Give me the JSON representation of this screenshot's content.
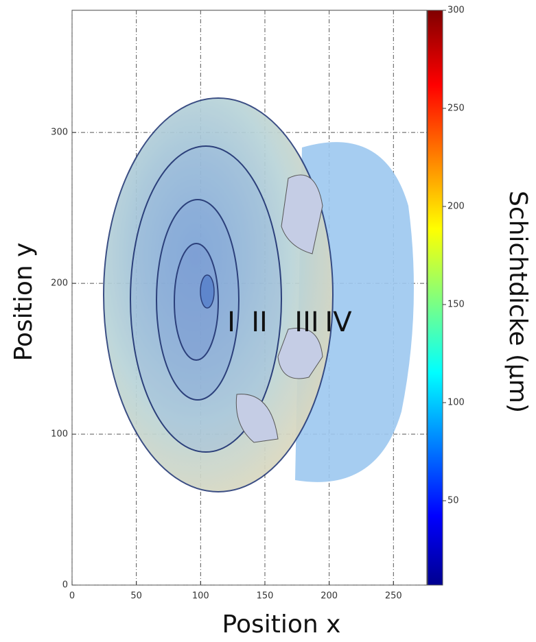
{
  "chart_data": {
    "type": "image-plot",
    "x_label": "Position x",
    "y_label": "Position y",
    "xlim": [
      0,
      276
    ],
    "xticks": [
      0,
      50,
      100,
      150,
      200,
      250
    ],
    "ylim": [
      0,
      381
    ],
    "yticks": [
      0,
      100,
      200,
      300
    ],
    "grid": true,
    "annotations": [
      "I",
      "II",
      "III",
      "IV"
    ],
    "colorbar": {
      "label": "Schichtdicke (µm)",
      "colormap": "jet",
      "clim": [
        7,
        300
      ],
      "ticks": [
        50,
        100,
        150,
        200,
        250,
        300
      ]
    }
  }
}
